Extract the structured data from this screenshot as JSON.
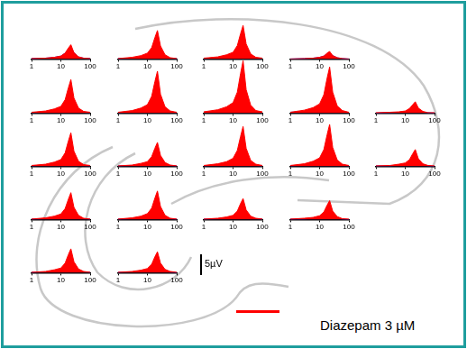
{
  "chart_data": [
    {
      "type": "line",
      "x": [
        1,
        3,
        6,
        10,
        14,
        18,
        22,
        28,
        40,
        60,
        100
      ],
      "xlim": [
        1,
        100
      ],
      "xticks": [
        1,
        10,
        100
      ],
      "ylim": [
        0,
        13
      ],
      "log": "x",
      "tick_labels": "x",
      "series": [
        {
          "name": "Diazepam 3 µM",
          "color": "#ff0000",
          "values": [
            0.1,
            0.2,
            0.4,
            0.7,
            1.4,
            2.6,
            3.4,
            1.5,
            0.5,
            0.2,
            0.1
          ]
        },
        {
          "color": "#2a2ad6",
          "values": [
            0.1,
            0.2,
            0.4,
            0.7,
            1.4,
            2.3,
            2.7,
            1.5,
            0.5,
            0.2,
            0.1
          ]
        }
      ]
    },
    {
      "type": "line",
      "x": [
        1,
        3,
        6,
        10,
        14,
        18,
        22,
        28,
        40,
        60,
        100
      ],
      "xlim": [
        1,
        100
      ],
      "xticks": [
        1,
        10,
        100
      ],
      "ylim": [
        0,
        13
      ],
      "log": "x",
      "tick_labels": "x",
      "series": [
        {
          "name": "Diazepam 3 µM",
          "color": "#ff0000",
          "values": [
            0.1,
            0.4,
            0.8,
            1.4,
            2.7,
            5.1,
            6.8,
            3.1,
            1.0,
            0.3,
            0.1
          ]
        },
        {
          "color": "#2a2ad6",
          "values": [
            0.1,
            0.2,
            0.3,
            0.6,
            1.2,
            2.0,
            2.3,
            1.3,
            0.5,
            0.2,
            0.1
          ]
        }
      ]
    },
    {
      "type": "line",
      "x": [
        1,
        3,
        6,
        10,
        14,
        18,
        22,
        28,
        40,
        60,
        100
      ],
      "xlim": [
        1,
        100
      ],
      "xticks": [
        1,
        10,
        100
      ],
      "ylim": [
        0,
        13
      ],
      "log": "x",
      "tick_labels": "x",
      "series": [
        {
          "name": "Diazepam 3 µM",
          "color": "#ff0000",
          "values": [
            0.2,
            0.5,
            1.0,
            1.6,
            3.2,
            6.0,
            8.0,
            3.6,
            1.2,
            0.4,
            0.2
          ]
        },
        {
          "color": "#2a2ad6",
          "values": [
            0.1,
            0.3,
            0.5,
            0.9,
            1.7,
            2.9,
            3.4,
            1.9,
            0.7,
            0.2,
            0.1
          ]
        }
      ]
    },
    {
      "type": "line",
      "x": [
        1,
        3,
        6,
        10,
        14,
        18,
        22,
        28,
        40,
        60,
        100
      ],
      "xlim": [
        1,
        100
      ],
      "xticks": [
        1,
        10,
        100
      ],
      "ylim": [
        0,
        13
      ],
      "log": "x",
      "tick_labels": "x",
      "series": [
        {
          "name": "Diazepam 3 µM",
          "color": "#ff0000",
          "values": [
            0,
            0.1,
            0.2,
            0.4,
            0.7,
            1.4,
            1.8,
            0.8,
            0.3,
            0.1,
            0
          ]
        },
        {
          "color": "#2a2ad6",
          "values": [
            0,
            0.1,
            0.2,
            0.4,
            0.7,
            1.2,
            1.4,
            0.8,
            0.3,
            0.1,
            0
          ]
        }
      ]
    },
    {
      "type": "line",
      "x": [
        1,
        3,
        6,
        10,
        14,
        18,
        22,
        28,
        40,
        60,
        100
      ],
      "xlim": [
        1,
        100
      ],
      "xticks": [
        1,
        10,
        100
      ],
      "ylim": [
        0,
        13
      ],
      "log": "x",
      "tick_labels": "x",
      "series": [
        {
          "name": "Diazepam 3 µM",
          "color": "#ff0000",
          "values": [
            0.2,
            0.5,
            1.0,
            1.6,
            3.2,
            6.0,
            8.0,
            3.6,
            1.2,
            0.4,
            0.2
          ]
        },
        {
          "color": "#2a2ad6",
          "values": [
            0.1,
            0.3,
            0.5,
            0.9,
            1.7,
            2.9,
            3.4,
            1.9,
            0.7,
            0.2,
            0.1
          ]
        }
      ]
    },
    {
      "type": "line",
      "x": [
        1,
        3,
        6,
        10,
        14,
        18,
        22,
        28,
        40,
        60,
        100
      ],
      "xlim": [
        1,
        100
      ],
      "xticks": [
        1,
        10,
        100
      ],
      "ylim": [
        0,
        13
      ],
      "log": "x",
      "tick_labels": "x",
      "series": [
        {
          "name": "Diazepam 3 µM",
          "color": "#ff0000",
          "values": [
            0.2,
            0.6,
            1.2,
            2.0,
            4.0,
            7.5,
            10.0,
            4.5,
            1.5,
            0.5,
            0.2
          ]
        },
        {
          "color": "#2a2ad6",
          "values": [
            0.1,
            0.3,
            0.6,
            1.0,
            2.0,
            3.4,
            4.0,
            2.2,
            0.8,
            0.3,
            0.1
          ]
        }
      ]
    },
    {
      "type": "line",
      "x": [
        1,
        3,
        6,
        10,
        14,
        18,
        22,
        28,
        40,
        60,
        100
      ],
      "xlim": [
        1,
        100
      ],
      "xticks": [
        1,
        10,
        100
      ],
      "ylim": [
        0,
        13
      ],
      "log": "x",
      "tick_labels": "x",
      "series": [
        {
          "name": "Diazepam 3 µM",
          "color": "#ff0000",
          "values": [
            0.3,
            0.8,
            1.5,
            2.5,
            5.0,
            9.4,
            12.5,
            5.6,
            1.9,
            0.6,
            0.3
          ]
        },
        {
          "color": "#2a2ad6",
          "values": [
            0.2,
            0.5,
            0.9,
            1.4,
            2.9,
            4.8,
            5.7,
            3.1,
            1.1,
            0.4,
            0.1
          ]
        }
      ]
    },
    {
      "type": "line",
      "x": [
        1,
        3,
        6,
        10,
        14,
        18,
        22,
        28,
        40,
        60,
        100
      ],
      "xlim": [
        1,
        100
      ],
      "xticks": [
        1,
        10,
        100
      ],
      "ylim": [
        0,
        13
      ],
      "log": "x",
      "tick_labels": "x",
      "series": [
        {
          "name": "Diazepam 3 µM",
          "color": "#ff0000",
          "values": [
            0.2,
            0.7,
            1.3,
            2.2,
            4.4,
            8.3,
            11.0,
            5.0,
            1.7,
            0.6,
            0.2
          ]
        },
        {
          "color": "#2a2ad6",
          "values": [
            0.2,
            0.4,
            0.8,
            1.3,
            2.5,
            4.3,
            5.0,
            2.8,
            1.0,
            0.4,
            0.1
          ]
        }
      ]
    },
    {
      "type": "line",
      "x": [
        1,
        3,
        6,
        10,
        14,
        18,
        22,
        28,
        40,
        60,
        100
      ],
      "xlim": [
        1,
        100
      ],
      "xticks": [
        1,
        10,
        100
      ],
      "ylim": [
        0,
        13
      ],
      "log": "x",
      "tick_labels": "x",
      "series": [
        {
          "name": "Diazepam 3 µM",
          "color": "#ff0000",
          "values": [
            0.1,
            0.2,
            0.3,
            0.5,
            1.1,
            2.0,
            2.7,
            1.2,
            0.4,
            0.1,
            0.1
          ]
        },
        {
          "color": "#2a2ad6",
          "values": [
            0,
            0.1,
            0.2,
            0.3,
            0.6,
            0.9,
            1.1,
            0.6,
            0.2,
            0.1,
            0
          ]
        }
      ]
    },
    {
      "type": "line",
      "x": [
        1,
        3,
        6,
        10,
        14,
        18,
        22,
        28,
        40,
        60,
        100
      ],
      "xlim": [
        1,
        100
      ],
      "xticks": [
        1,
        10,
        100
      ],
      "ylim": [
        0,
        13
      ],
      "log": "x",
      "tick_labels": "x",
      "series": [
        {
          "name": "Diazepam 3 µM",
          "color": "#ff0000",
          "values": [
            0.2,
            0.5,
            1.0,
            1.6,
            3.2,
            6.0,
            8.0,
            3.6,
            1.2,
            0.4,
            0.2
          ]
        },
        {
          "color": "#2a2ad6",
          "values": [
            0.1,
            0.3,
            0.5,
            0.8,
            1.6,
            2.7,
            3.2,
            1.8,
            0.6,
            0.2,
            0.1
          ]
        }
      ]
    },
    {
      "type": "line",
      "x": [
        1,
        3,
        6,
        10,
        14,
        18,
        22,
        28,
        40,
        60,
        100
      ],
      "xlim": [
        1,
        100
      ],
      "xticks": [
        1,
        10,
        100
      ],
      "ylim": [
        0,
        13
      ],
      "log": "x",
      "tick_labels": "x",
      "series": [
        {
          "name": "Diazepam 3 µM",
          "color": "#ff0000",
          "values": [
            0.1,
            0.3,
            0.7,
            1.1,
            2.3,
            4.3,
            5.7,
            2.6,
            0.9,
            0.3,
            0.1
          ]
        },
        {
          "color": "#2a2ad6",
          "values": [
            0.1,
            0.2,
            0.4,
            0.7,
            1.4,
            2.3,
            2.7,
            1.5,
            0.5,
            0.2,
            0.1
          ]
        }
      ]
    },
    {
      "type": "line",
      "x": [
        1,
        3,
        6,
        10,
        14,
        18,
        22,
        28,
        40,
        60,
        100
      ],
      "xlim": [
        1,
        100
      ],
      "xticks": [
        1,
        10,
        100
      ],
      "ylim": [
        0,
        13
      ],
      "log": "x",
      "tick_labels": "x",
      "series": [
        {
          "name": "Diazepam 3 µM",
          "color": "#ff0000",
          "values": [
            0.2,
            0.6,
            1.1,
            1.9,
            3.8,
            7.1,
            9.5,
            4.3,
            1.4,
            0.5,
            0.2
          ]
        },
        {
          "color": "#2a2ad6",
          "values": [
            0.1,
            0.3,
            0.5,
            0.9,
            1.7,
            2.9,
            3.4,
            1.9,
            0.7,
            0.2,
            0.1
          ]
        }
      ]
    },
    {
      "type": "line",
      "x": [
        1,
        3,
        6,
        10,
        14,
        18,
        22,
        28,
        40,
        60,
        100
      ],
      "xlim": [
        1,
        100
      ],
      "xticks": [
        1,
        10,
        100
      ],
      "ylim": [
        0,
        13
      ],
      "log": "x",
      "tick_labels": "x",
      "series": [
        {
          "name": "Diazepam 3 µM",
          "color": "#ff0000",
          "values": [
            0.2,
            0.6,
            1.2,
            2.0,
            4.0,
            7.5,
            10.0,
            4.5,
            1.5,
            0.5,
            0.2
          ]
        },
        {
          "color": "#2a2ad6",
          "values": [
            0.1,
            0.3,
            0.6,
            1.0,
            2.0,
            3.4,
            4.0,
            2.2,
            0.8,
            0.3,
            0.1
          ]
        }
      ]
    },
    {
      "type": "line",
      "x": [
        1,
        3,
        6,
        10,
        14,
        18,
        22,
        28,
        40,
        60,
        100
      ],
      "xlim": [
        1,
        100
      ],
      "xticks": [
        1,
        10,
        100
      ],
      "ylim": [
        0,
        13
      ],
      "log": "x",
      "tick_labels": "x",
      "series": [
        {
          "name": "Diazepam 3 µM",
          "color": "#ff0000",
          "values": [
            0.1,
            0.2,
            0.5,
            0.8,
            1.6,
            3.0,
            4.0,
            1.8,
            0.6,
            0.2,
            0.1
          ]
        },
        {
          "color": "#2a2ad6",
          "values": [
            0.1,
            0.1,
            0.3,
            0.5,
            0.9,
            1.5,
            1.8,
            1.0,
            0.4,
            0.1,
            0
          ]
        }
      ]
    },
    {
      "type": "line",
      "x": [
        1,
        3,
        6,
        10,
        14,
        18,
        22,
        28,
        40,
        60,
        100
      ],
      "xlim": [
        1,
        100
      ],
      "xticks": [
        1,
        10,
        100
      ],
      "ylim": [
        0,
        13
      ],
      "log": "x",
      "tick_labels": "x",
      "series": [
        {
          "name": "Diazepam 3 µM",
          "color": "#ff0000",
          "values": [
            0.1,
            0.4,
            0.8,
            1.3,
            2.6,
            4.8,
            6.4,
            2.9,
            1.0,
            0.3,
            0.1
          ]
        },
        {
          "color": "#2a2ad6",
          "values": [
            0.1,
            0.2,
            0.4,
            0.7,
            1.4,
            2.3,
            2.7,
            1.5,
            0.5,
            0.2,
            0.1
          ]
        }
      ]
    },
    {
      "type": "line",
      "x": [
        1,
        3,
        6,
        10,
        14,
        18,
        22,
        28,
        40,
        60,
        100
      ],
      "xlim": [
        1,
        100
      ],
      "xticks": [
        1,
        10,
        100
      ],
      "ylim": [
        0,
        13
      ],
      "log": "x",
      "tick_labels": "x",
      "series": [
        {
          "name": "Diazepam 3 µM",
          "color": "#ff0000",
          "values": [
            0.1,
            0.4,
            0.8,
            1.4,
            2.7,
            5.1,
            6.8,
            3.1,
            1.0,
            0.3,
            0.1
          ]
        },
        {
          "color": "#2a2ad6",
          "values": [
            0.1,
            0.2,
            0.4,
            0.7,
            1.4,
            2.3,
            2.7,
            1.5,
            0.5,
            0.2,
            0.1
          ]
        }
      ]
    },
    {
      "type": "line",
      "x": [
        1,
        3,
        6,
        10,
        14,
        18,
        22,
        28,
        40,
        60,
        100
      ],
      "xlim": [
        1,
        100
      ],
      "xticks": [
        1,
        10,
        100
      ],
      "ylim": [
        0,
        13
      ],
      "log": "x",
      "tick_labels": "x",
      "series": [
        {
          "name": "Diazepam 3 µM",
          "color": "#ff0000",
          "values": [
            0.1,
            0.3,
            0.6,
            1.0,
            2.0,
            3.8,
            5.0,
            2.3,
            0.8,
            0.3,
            0.1
          ]
        },
        {
          "color": "#2a2ad6",
          "values": [
            0.1,
            0.2,
            0.3,
            0.6,
            1.2,
            2.0,
            2.3,
            1.3,
            0.5,
            0.2,
            0.1
          ]
        }
      ]
    },
    {
      "type": "line",
      "x": [
        1,
        3,
        6,
        10,
        14,
        18,
        22,
        28,
        40,
        60,
        100
      ],
      "xlim": [
        1,
        100
      ],
      "xticks": [
        1,
        10,
        100
      ],
      "ylim": [
        0,
        13
      ],
      "log": "x",
      "tick_labels": "x",
      "series": [
        {
          "name": "Diazepam 3 µM",
          "color": "#ff0000",
          "values": [
            0.1,
            0.3,
            0.5,
            0.9,
            1.8,
            3.4,
            4.5,
            2.0,
            0.7,
            0.2,
            0.1
          ]
        },
        {
          "color": "#2a2ad6",
          "values": [
            0.1,
            0.1,
            0.3,
            0.5,
            0.9,
            1.5,
            1.8,
            1.0,
            0.4,
            0.1,
            0
          ]
        }
      ]
    },
    {
      "type": "line",
      "x": [
        1,
        3,
        6,
        10,
        14,
        18,
        22,
        28,
        40,
        60,
        100
      ],
      "xlim": [
        1,
        100
      ],
      "xticks": [
        1,
        10,
        100
      ],
      "ylim": [
        0,
        13
      ],
      "log": "x",
      "tick_labels": "x",
      "series": [
        {
          "name": "Diazepam 3 µM",
          "color": "#ff0000",
          "values": [
            0.1,
            0.3,
            0.7,
            1.1,
            2.3,
            4.3,
            5.7,
            2.6,
            0.9,
            0.3,
            0.1
          ]
        },
        {
          "color": "#2a2ad6",
          "values": [
            0.1,
            0.2,
            0.3,
            0.6,
            1.2,
            2.0,
            2.3,
            1.3,
            0.5,
            0.2,
            0.1
          ]
        }
      ]
    },
    {
      "type": "line",
      "x": [
        1,
        3,
        6,
        10,
        14,
        18,
        22,
        28,
        40,
        60,
        100
      ],
      "xlim": [
        1,
        100
      ],
      "xticks": [
        1,
        10,
        100
      ],
      "ylim": [
        0,
        13
      ],
      "log": "x",
      "tick_labels": "x",
      "series": [
        {
          "name": "Diazepam 3 µM",
          "color": "#ff0000",
          "values": [
            0.1,
            0.3,
            0.6,
            1.0,
            2.0,
            3.8,
            5.0,
            2.3,
            0.8,
            0.3,
            0.1
          ]
        },
        {
          "color": "#2a2ad6",
          "values": [
            0.1,
            0.2,
            0.3,
            0.5,
            1.0,
            1.7,
            2.0,
            1.1,
            0.4,
            0.1,
            0
          ]
        }
      ]
    }
  ],
  "scale_bar": {
    "value": 5,
    "label": "5µV"
  }
}
